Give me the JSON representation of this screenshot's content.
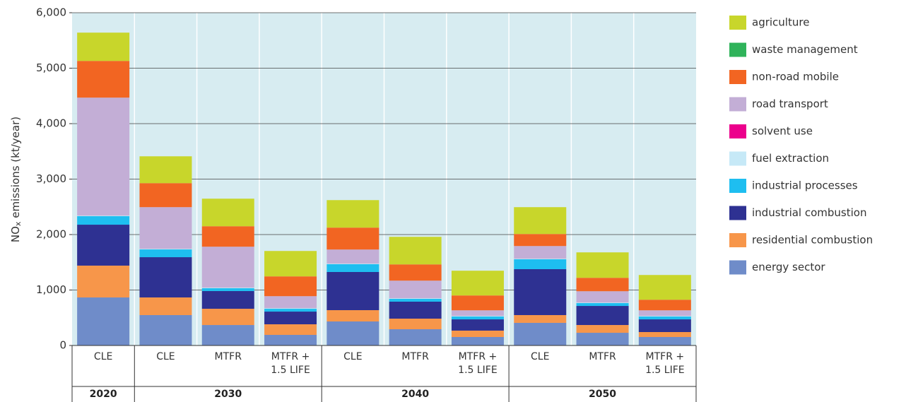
{
  "chart_data": {
    "type": "stacked_bar",
    "y_label": {
      "main": "NO",
      "sub": "x",
      "rest": " emissions (kt/year)"
    },
    "groups": [
      {
        "name": "2020",
        "categories": [
          "CLE"
        ]
      },
      {
        "name": "2030",
        "categories": [
          "CLE",
          "MTFR",
          "MTFR + 1.5 LIFE"
        ]
      },
      {
        "name": "2040",
        "categories": [
          "CLE",
          "MTFR",
          "MTFR + 1.5 LIFE"
        ]
      },
      {
        "name": "2050",
        "categories": [
          "CLE",
          "MTFR",
          "MTFR + 1.5 LIFE"
        ]
      }
    ],
    "ylim": [
      0,
      6000
    ],
    "yticks": [
      0,
      {
        "value": 1000,
        "label": "1,000"
      },
      {
        "value": 2000,
        "label": "2,000"
      },
      {
        "value": 3000,
        "label": "3,000"
      },
      {
        "value": 4000,
        "label": "4,000"
      },
      {
        "value": 5000,
        "label": "5,000"
      },
      {
        "value": 6000,
        "label": "6,000"
      }
    ],
    "grid": true,
    "legend": "right",
    "series": [
      {
        "name": "energy sector",
        "color": "#6f8cc9",
        "values": [
          866,
          548,
          369,
          191,
          433,
          293,
          153,
          408,
          229,
          153
        ]
      },
      {
        "name": "residential combustion",
        "color": "#f7964a",
        "values": [
          574,
          318,
          293,
          191,
          204,
          191,
          115,
          140,
          140,
          89
        ]
      },
      {
        "name": "industrial combustion",
        "color": "#2e3192",
        "values": [
          738,
          726,
          319,
          229,
          688,
          306,
          203,
          828,
          344,
          229
        ]
      },
      {
        "name": "industrial processes",
        "color": "#1ebef0",
        "values": [
          153,
          140,
          51,
          51,
          140,
          51,
          51,
          178,
          51,
          51
        ]
      },
      {
        "name": "fuel extraction",
        "color": "#c6e9f7",
        "values": [
          10,
          10,
          10,
          10,
          10,
          10,
          10,
          10,
          10,
          10
        ]
      },
      {
        "name": "solvent use",
        "color": "#ec008c",
        "values": [
          0,
          0,
          0,
          0,
          0,
          0,
          0,
          0,
          0,
          0
        ]
      },
      {
        "name": "road transport",
        "color": "#c3aed6",
        "values": [
          2128,
          752,
          739,
          217,
          255,
          318,
          102,
          229,
          204,
          102
        ]
      },
      {
        "name": "non-road mobile",
        "color": "#f26522",
        "values": [
          662,
          433,
          369,
          357,
          395,
          293,
          268,
          217,
          242,
          191
        ]
      },
      {
        "name": "waste management",
        "color": "#2fb35a",
        "values": [
          0,
          0,
          0,
          0,
          0,
          0,
          0,
          0,
          0,
          0
        ]
      },
      {
        "name": "agriculture",
        "color": "#c8d62b",
        "values": [
          510,
          484,
          497,
          458,
          496,
          497,
          446,
          484,
          459,
          446
        ]
      }
    ]
  }
}
